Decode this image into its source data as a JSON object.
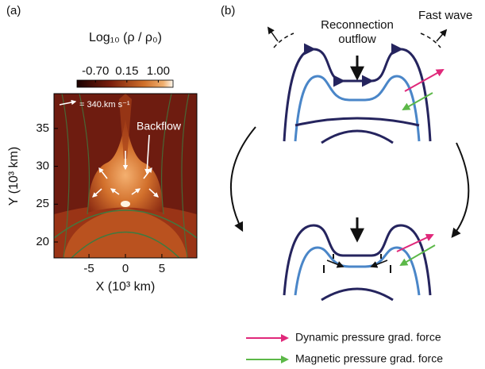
{
  "panel_a": {
    "label": "(a)",
    "colorbar": {
      "title": "Log₁₀ (ρ / ρ₀)",
      "clim": [
        -1.2,
        1.4
      ],
      "ticks": [
        {
          "value": -0.7,
          "label": "-0.70"
        },
        {
          "value": 0.15,
          "label": "0.15"
        },
        {
          "value": 1.0,
          "label": "1.00"
        }
      ]
    },
    "xlabel": "X (10³ km)",
    "ylabel": "Y (10³ km)",
    "xlim": [
      -9.8,
      9.8
    ],
    "ylim": [
      17.9,
      39.6
    ],
    "xticks": [
      -5,
      0,
      5
    ],
    "yticks": [
      20,
      25,
      30,
      35
    ],
    "velocity_key": "= 340.km s⁻¹",
    "annotation": "Backflow"
  },
  "panel_b": {
    "label": "(b)",
    "outflow": [
      "Reconnection",
      "outflow"
    ],
    "fast_wave": "Fast wave",
    "legend": [
      {
        "label": "Dynamic pressure grad. force",
        "color": "#e0287a"
      },
      {
        "label": "Magnetic pressure grad. force",
        "color": "#5cb848"
      }
    ]
  }
}
